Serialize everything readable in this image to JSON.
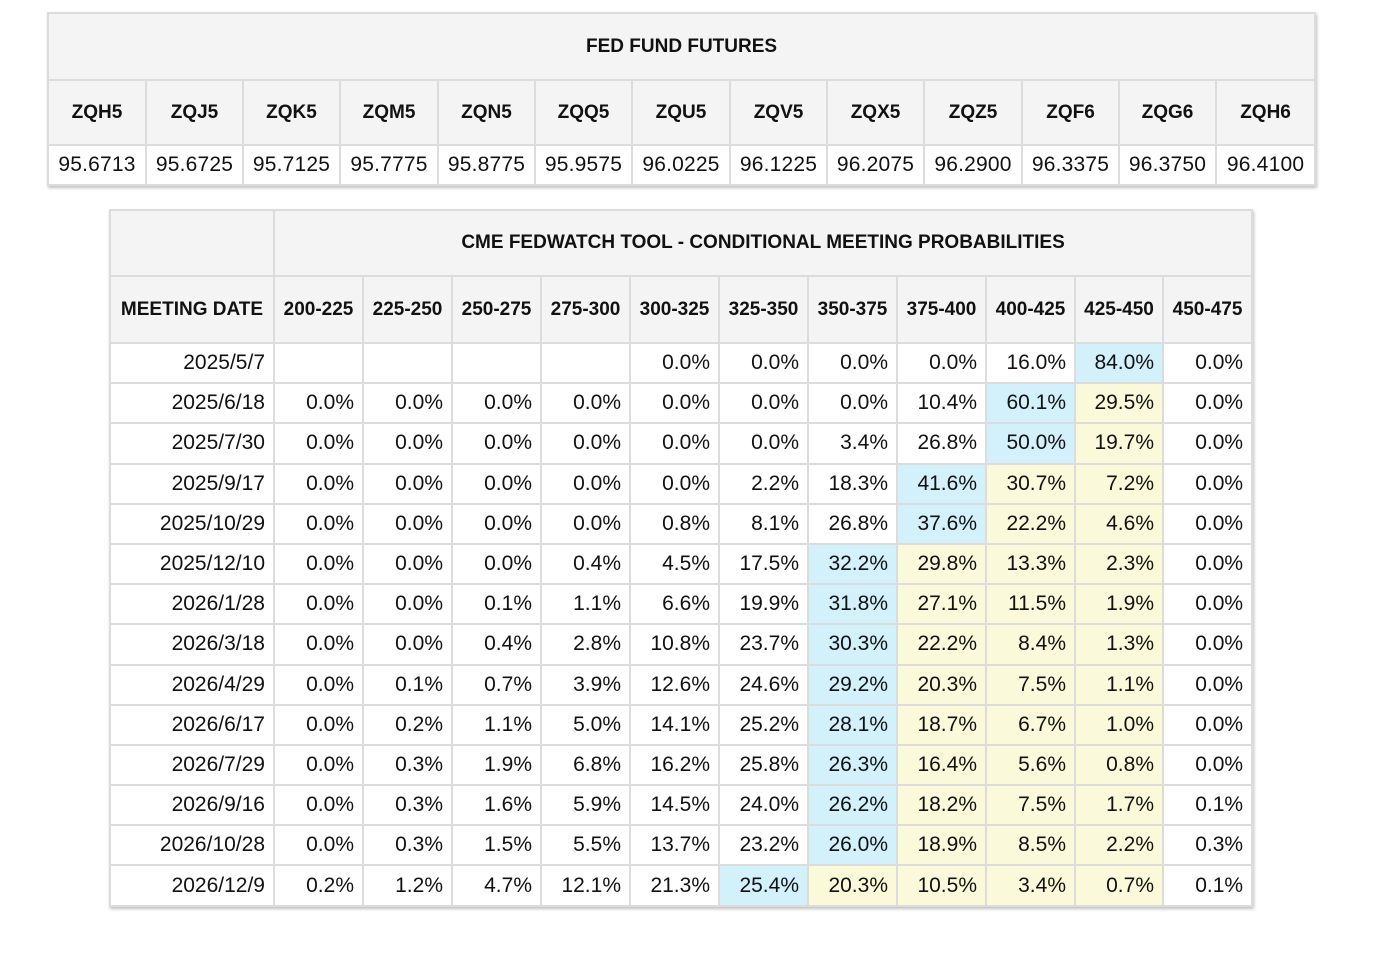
{
  "colors": {
    "header_bg": "#f4f4f4",
    "border": "#dcdcdc",
    "highlight_blue": "#d3f1fb",
    "highlight_yellow": "#fafadb"
  },
  "futures": {
    "title": "FED FUND FUTURES",
    "codes": [
      "ZQH5",
      "ZQJ5",
      "ZQK5",
      "ZQM5",
      "ZQN5",
      "ZQQ5",
      "ZQU5",
      "ZQV5",
      "ZQX5",
      "ZQZ5",
      "ZQF6",
      "ZQG6",
      "ZQH6"
    ],
    "prices": [
      "95.6713",
      "95.6725",
      "95.7125",
      "95.7775",
      "95.8775",
      "95.9575",
      "96.0225",
      "96.1225",
      "96.2075",
      "96.2900",
      "96.3375",
      "96.3750",
      "96.4100"
    ]
  },
  "fedwatch": {
    "title": "CME FEDWATCH TOOL - CONDITIONAL MEETING PROBABILITIES",
    "date_header": "MEETING DATE",
    "ranges": [
      "200-225",
      "225-250",
      "250-275",
      "275-300",
      "300-325",
      "325-350",
      "350-375",
      "375-400",
      "400-425",
      "425-450",
      "450-475"
    ],
    "rows": [
      {
        "date": "2025/5/7",
        "values": [
          "",
          "",
          "",
          "",
          "0.0%",
          "0.0%",
          "0.0%",
          "0.0%",
          "16.0%",
          "84.0%",
          "0.0%"
        ],
        "highlight_blue": 9,
        "highlight_yellow": []
      },
      {
        "date": "2025/6/18",
        "values": [
          "0.0%",
          "0.0%",
          "0.0%",
          "0.0%",
          "0.0%",
          "0.0%",
          "0.0%",
          "10.4%",
          "60.1%",
          "29.5%",
          "0.0%"
        ],
        "highlight_blue": 8,
        "highlight_yellow": [
          9
        ]
      },
      {
        "date": "2025/7/30",
        "values": [
          "0.0%",
          "0.0%",
          "0.0%",
          "0.0%",
          "0.0%",
          "0.0%",
          "3.4%",
          "26.8%",
          "50.0%",
          "19.7%",
          "0.0%"
        ],
        "highlight_blue": 8,
        "highlight_yellow": [
          9
        ]
      },
      {
        "date": "2025/9/17",
        "values": [
          "0.0%",
          "0.0%",
          "0.0%",
          "0.0%",
          "0.0%",
          "2.2%",
          "18.3%",
          "41.6%",
          "30.7%",
          "7.2%",
          "0.0%"
        ],
        "highlight_blue": 7,
        "highlight_yellow": [
          8,
          9
        ]
      },
      {
        "date": "2025/10/29",
        "values": [
          "0.0%",
          "0.0%",
          "0.0%",
          "0.0%",
          "0.8%",
          "8.1%",
          "26.8%",
          "37.6%",
          "22.2%",
          "4.6%",
          "0.0%"
        ],
        "highlight_blue": 7,
        "highlight_yellow": [
          8,
          9
        ]
      },
      {
        "date": "2025/12/10",
        "values": [
          "0.0%",
          "0.0%",
          "0.0%",
          "0.4%",
          "4.5%",
          "17.5%",
          "32.2%",
          "29.8%",
          "13.3%",
          "2.3%",
          "0.0%"
        ],
        "highlight_blue": 6,
        "highlight_yellow": [
          7,
          8,
          9
        ]
      },
      {
        "date": "2026/1/28",
        "values": [
          "0.0%",
          "0.0%",
          "0.1%",
          "1.1%",
          "6.6%",
          "19.9%",
          "31.8%",
          "27.1%",
          "11.5%",
          "1.9%",
          "0.0%"
        ],
        "highlight_blue": 6,
        "highlight_yellow": [
          7,
          8,
          9
        ]
      },
      {
        "date": "2026/3/18",
        "values": [
          "0.0%",
          "0.0%",
          "0.4%",
          "2.8%",
          "10.8%",
          "23.7%",
          "30.3%",
          "22.2%",
          "8.4%",
          "1.3%",
          "0.0%"
        ],
        "highlight_blue": 6,
        "highlight_yellow": [
          7,
          8,
          9
        ]
      },
      {
        "date": "2026/4/29",
        "values": [
          "0.0%",
          "0.1%",
          "0.7%",
          "3.9%",
          "12.6%",
          "24.6%",
          "29.2%",
          "20.3%",
          "7.5%",
          "1.1%",
          "0.0%"
        ],
        "highlight_blue": 6,
        "highlight_yellow": [
          7,
          8,
          9
        ]
      },
      {
        "date": "2026/6/17",
        "values": [
          "0.0%",
          "0.2%",
          "1.1%",
          "5.0%",
          "14.1%",
          "25.2%",
          "28.1%",
          "18.7%",
          "6.7%",
          "1.0%",
          "0.0%"
        ],
        "highlight_blue": 6,
        "highlight_yellow": [
          7,
          8,
          9
        ]
      },
      {
        "date": "2026/7/29",
        "values": [
          "0.0%",
          "0.3%",
          "1.9%",
          "6.8%",
          "16.2%",
          "25.8%",
          "26.3%",
          "16.4%",
          "5.6%",
          "0.8%",
          "0.0%"
        ],
        "highlight_blue": 6,
        "highlight_yellow": [
          7,
          8,
          9
        ]
      },
      {
        "date": "2026/9/16",
        "values": [
          "0.0%",
          "0.3%",
          "1.6%",
          "5.9%",
          "14.5%",
          "24.0%",
          "26.2%",
          "18.2%",
          "7.5%",
          "1.7%",
          "0.1%"
        ],
        "highlight_blue": 6,
        "highlight_yellow": [
          7,
          8,
          9
        ]
      },
      {
        "date": "2026/10/28",
        "values": [
          "0.0%",
          "0.3%",
          "1.5%",
          "5.5%",
          "13.7%",
          "23.2%",
          "26.0%",
          "18.9%",
          "8.5%",
          "2.2%",
          "0.3%"
        ],
        "highlight_blue": 6,
        "highlight_yellow": [
          7,
          8,
          9
        ]
      },
      {
        "date": "2026/12/9",
        "values": [
          "0.2%",
          "1.2%",
          "4.7%",
          "12.1%",
          "21.3%",
          "25.4%",
          "20.3%",
          "10.5%",
          "3.4%",
          "0.7%",
          "0.1%"
        ],
        "highlight_blue": 5,
        "highlight_yellow": [
          6,
          7,
          8,
          9
        ]
      }
    ]
  }
}
